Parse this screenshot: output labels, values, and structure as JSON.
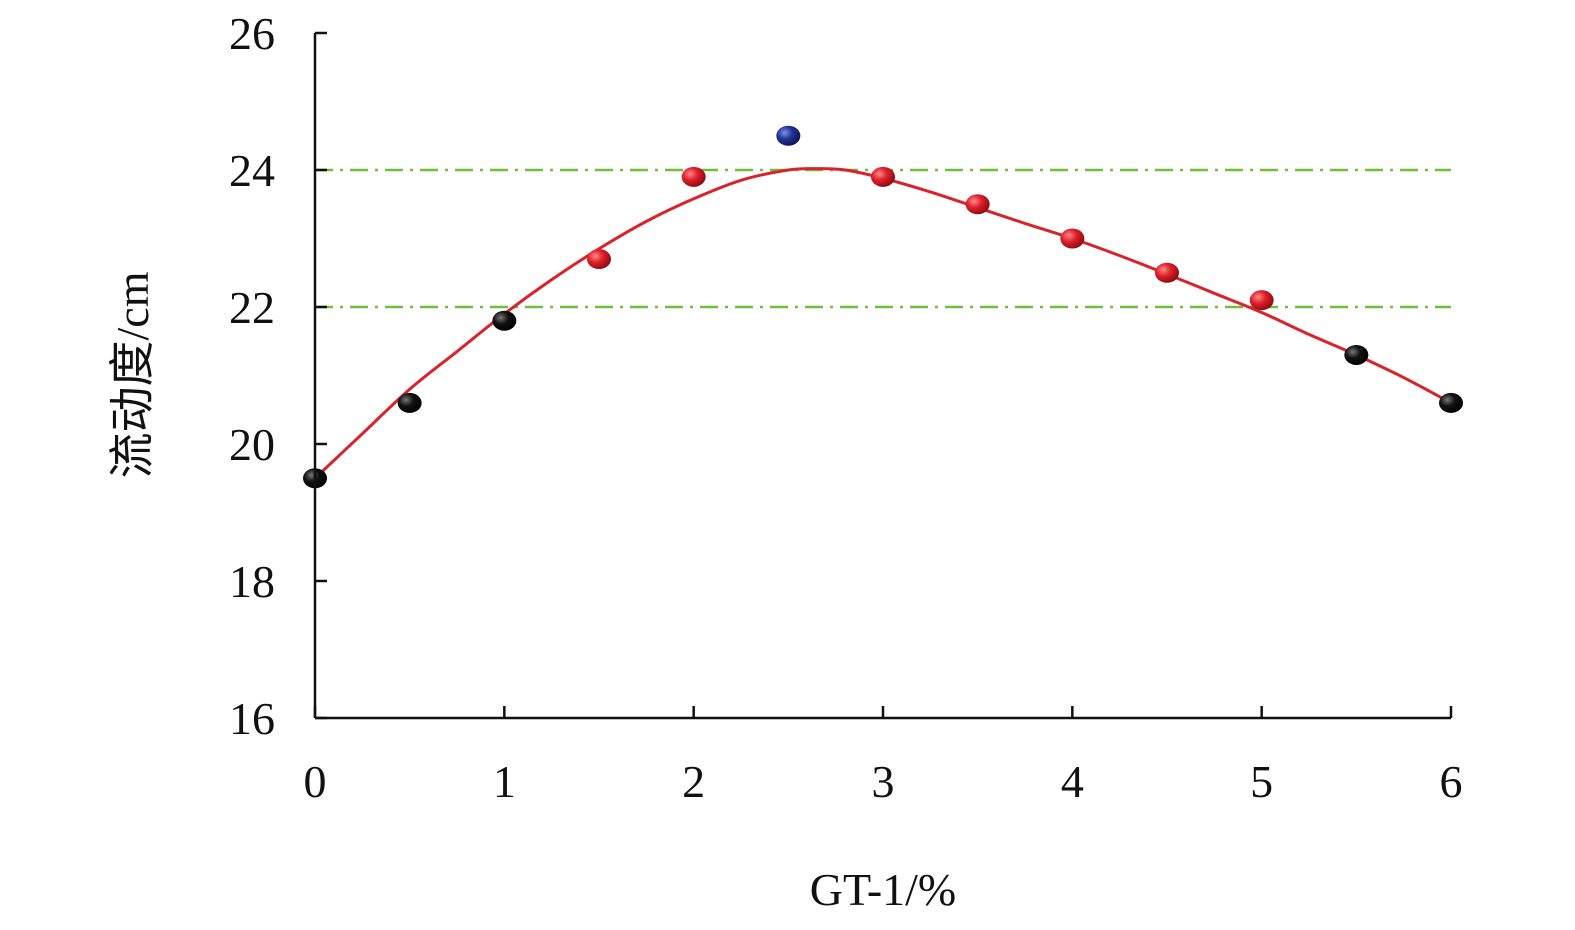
{
  "chart_data": {
    "type": "scatter",
    "title": "",
    "xlabel": "GT-1/%",
    "ylabel": "流动度/cm",
    "xlim": [
      0,
      6
    ],
    "ylim": [
      16,
      26
    ],
    "x_ticks": [
      "0",
      "1",
      "2",
      "3",
      "4",
      "5",
      "6"
    ],
    "y_ticks": [
      "16",
      "18",
      "20",
      "22",
      "24",
      "26"
    ],
    "grid": false,
    "legend": "none",
    "points": [
      {
        "x": 0.0,
        "y": 19.5,
        "color": "#111111"
      },
      {
        "x": 0.5,
        "y": 20.6,
        "color": "#111111"
      },
      {
        "x": 1.0,
        "y": 21.8,
        "color": "#111111"
      },
      {
        "x": 1.5,
        "y": 22.7,
        "color": "#e0202a"
      },
      {
        "x": 2.0,
        "y": 23.9,
        "color": "#e0202a"
      },
      {
        "x": 2.5,
        "y": 24.5,
        "color": "#23349a"
      },
      {
        "x": 3.0,
        "y": 23.9,
        "color": "#e0202a"
      },
      {
        "x": 3.5,
        "y": 23.5,
        "color": "#e0202a"
      },
      {
        "x": 4.0,
        "y": 23.0,
        "color": "#e0202a"
      },
      {
        "x": 4.5,
        "y": 22.5,
        "color": "#e0202a"
      },
      {
        "x": 5.0,
        "y": 22.1,
        "color": "#e0202a"
      },
      {
        "x": 5.5,
        "y": 21.3,
        "color": "#111111"
      },
      {
        "x": 6.0,
        "y": 20.6,
        "color": "#111111"
      }
    ],
    "fit_curve": {
      "color": "#d9232b",
      "x": [
        0,
        0.25,
        0.5,
        0.75,
        1.0,
        1.25,
        1.5,
        1.75,
        2.0,
        2.25,
        2.5,
        2.65,
        2.8,
        3.0,
        3.25,
        3.5,
        3.75,
        4.0,
        4.25,
        4.5,
        4.75,
        5.0,
        5.25,
        5.5,
        5.75,
        6.0
      ],
      "y": [
        19.5,
        20.15,
        20.8,
        21.35,
        21.9,
        22.4,
        22.85,
        23.25,
        23.58,
        23.85,
        24.0,
        24.02,
        24.0,
        23.88,
        23.68,
        23.45,
        23.22,
        23.0,
        22.75,
        22.48,
        22.2,
        21.92,
        21.6,
        21.3,
        20.97,
        20.6
      ]
    },
    "reference_lines": [
      {
        "y": 24,
        "color": "#6fbf3a",
        "style": "dash-dot"
      },
      {
        "y": 22,
        "color": "#6fbf3a",
        "style": "dash-dot"
      }
    ]
  }
}
